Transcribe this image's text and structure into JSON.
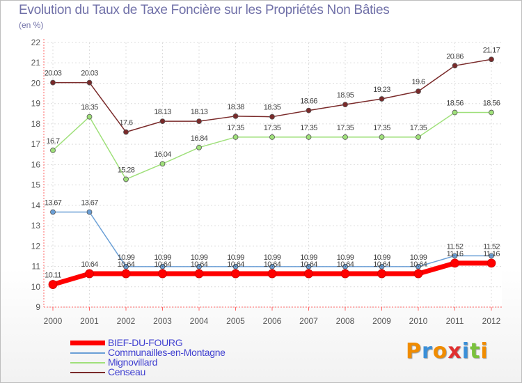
{
  "chart_data": {
    "type": "line",
    "title": "Evolution du Taux de Taxe Foncière sur les Propriétés Non Bâties",
    "ylabel": "(en %)",
    "xlabel": "",
    "x": [
      "2000",
      "2001",
      "2002",
      "2003",
      "2004",
      "2005",
      "2006",
      "2007",
      "2008",
      "2009",
      "2010",
      "2011",
      "2012"
    ],
    "ylim": [
      9,
      22
    ],
    "yticks": [
      "9",
      "10",
      "11",
      "12",
      "13",
      "14",
      "15",
      "16",
      "17",
      "18",
      "19",
      "20",
      "21",
      "22"
    ],
    "grid": true,
    "series": [
      {
        "name": "BIEF-DU-FOURG",
        "color": "#ff0000",
        "values": [
          10.11,
          10.64,
          10.64,
          10.64,
          10.64,
          10.64,
          10.64,
          10.64,
          10.64,
          10.64,
          10.64,
          11.16,
          11.16
        ],
        "labels": [
          "10.11",
          "10.64",
          "10.64",
          "10.64",
          "10.64",
          "10.64",
          "10.64",
          "10.64",
          "10.64",
          "10.64",
          "10.64",
          "11.16",
          "11.16"
        ]
      },
      {
        "name": "Communailles-en-Montagne",
        "color": "#6a9fd6",
        "values": [
          13.67,
          13.67,
          10.99,
          10.99,
          10.99,
          10.99,
          10.99,
          10.99,
          10.99,
          10.99,
          10.99,
          11.52,
          11.52
        ],
        "labels": [
          "13.67",
          "13.67",
          "10.99",
          "10.99",
          "10.99",
          "10.99",
          "10.99",
          "10.99",
          "10.99",
          "10.99",
          "10.99",
          "11.52",
          "11.52"
        ]
      },
      {
        "name": "Mignovillard",
        "color": "#9fe07a",
        "values": [
          16.7,
          18.35,
          15.28,
          16.04,
          16.84,
          17.35,
          17.35,
          17.35,
          17.35,
          17.35,
          17.35,
          18.56,
          18.56
        ],
        "labels": [
          "16.7",
          "18.35",
          "15.28",
          "16.04",
          "16.84",
          "17.35",
          "17.35",
          "17.35",
          "17.35",
          "17.35",
          "17.35",
          "18.56",
          "18.56"
        ]
      },
      {
        "name": "Censeau",
        "color": "#7a2a2a",
        "values": [
          20.03,
          20.03,
          17.6,
          18.13,
          18.13,
          18.38,
          18.35,
          18.66,
          18.95,
          19.23,
          19.6,
          20.86,
          21.17
        ],
        "labels": [
          "20.03",
          "20.03",
          "17.6",
          "18.13",
          "18.13",
          "18.38",
          "18.35",
          "18.66",
          "18.95",
          "19.23",
          "19.6",
          "20.86",
          "21.17"
        ]
      }
    ]
  },
  "legend": {
    "items": [
      {
        "name": "BIEF-DU-FOURG",
        "color": "#ff0000"
      },
      {
        "name": "Communailles-en-Montagne",
        "color": "#6a9fd6"
      },
      {
        "name": "Mignovillard",
        "color": "#9fe07a"
      },
      {
        "name": "Censeau",
        "color": "#7a2a2a"
      }
    ]
  },
  "logo": {
    "text": "Proxiti",
    "colors": [
      "#f08c00",
      "#3a8fd8",
      "#f08c00",
      "#e03030",
      "#3a8fd8",
      "#7ac23c",
      "#f08c00"
    ]
  }
}
